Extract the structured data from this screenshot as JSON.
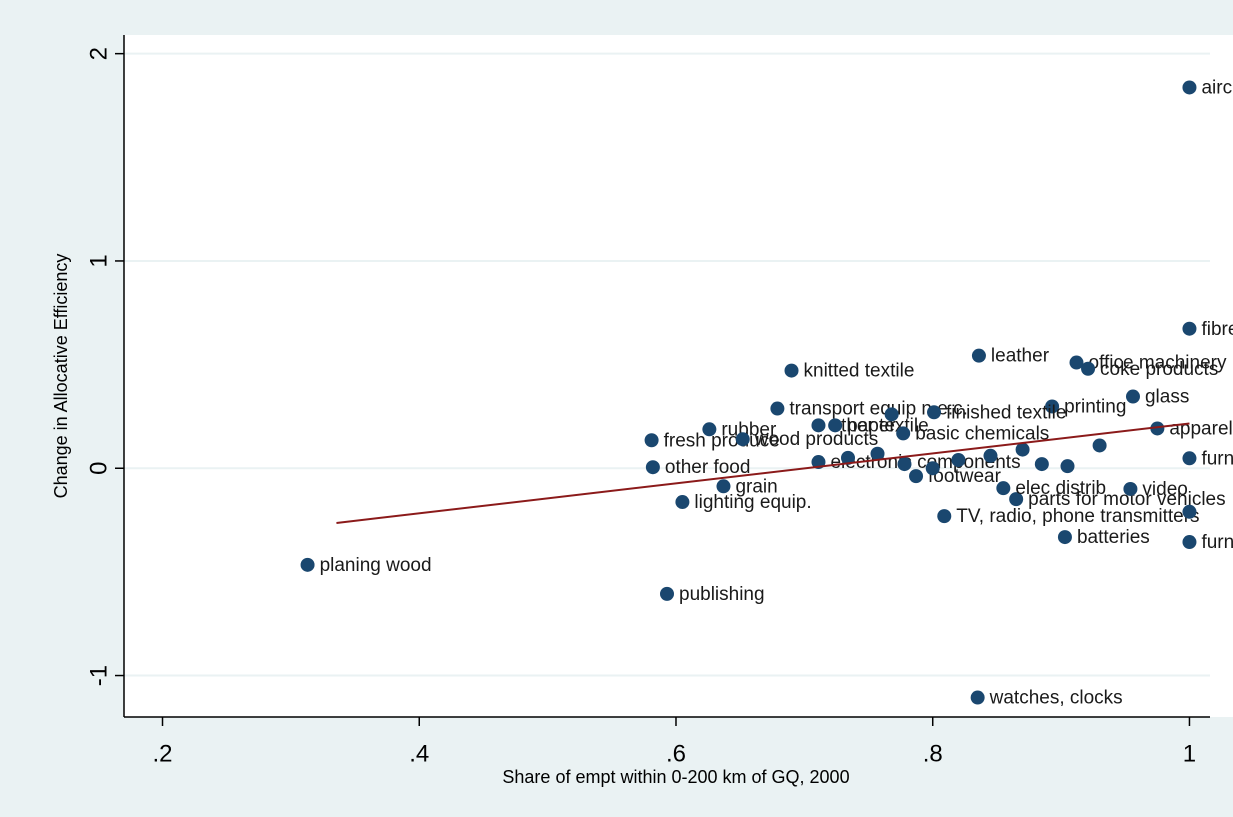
{
  "chart_data": {
    "type": "scatter",
    "x_label": "Share of empt within 0-200 km of GQ, 2000",
    "y_label": "Change in Allocative Efficiency",
    "color": "#1a476f",
    "x": [
      1,
      1,
      0.836,
      0.912,
      0.921,
      0.69,
      0.956,
      0.893,
      0.679,
      0.975,
      0.626,
      0.711,
      0.724,
      0.801,
      0.777,
      0.581,
      0.652,
      1,
      0.582,
      0.637,
      0.605,
      0.809,
      0.903,
      1,
      0.865,
      0.855,
      0.954,
      0.787,
      0.711,
      0.313,
      0.593,
      0.835,
      0.734,
      0.757,
      0.778,
      0.82,
      0.845,
      0.87,
      0.885,
      0.905,
      0.93,
      1,
      0.768,
      0.8
    ],
    "values": [
      1.837,
      0.673,
      0.543,
      0.51,
      0.48,
      0.471,
      0.346,
      0.298,
      0.288,
      0.192,
      0.188,
      0.207,
      0.207,
      0.27,
      0.168,
      0.135,
      0.14,
      0.048,
      0.005,
      -0.087,
      -0.163,
      -0.231,
      -0.332,
      -0.356,
      -0.149,
      -0.096,
      -0.1,
      -0.038,
      0.03,
      -0.466,
      -0.606,
      -1.106,
      0.05,
      0.07,
      0.02,
      0.04,
      0.06,
      0.09,
      0.02,
      0.01,
      0.11,
      -0.21,
      0.26,
      0.0
    ],
    "labels": [
      "aircraft",
      "fibres",
      "leather",
      "office machinery",
      "coke products",
      "knitted textile",
      "glass",
      "printing",
      "transport equip n.e.c.",
      "apparel",
      "rubber",
      "other textile",
      "paper",
      "finished textile",
      "basic chemicals",
      "fresh produce",
      "wood products",
      "furniture n.e.c.",
      "other food",
      "grain",
      "lighting equip.",
      "TV, radio, phone transmitters",
      "batteries",
      "furniture",
      "parts for motor vehicles",
      "elec distrib",
      "video",
      "footwear",
      "electronic components",
      "planing wood",
      "publishing",
      "watches, clocks",
      null,
      null,
      null,
      null,
      null,
      null,
      null,
      null,
      null,
      null,
      null,
      null
    ],
    "fit": {
      "x": [
        0.3355,
        1
      ],
      "y": [
        -0.264,
        0.216
      ],
      "color": "#8b1a1a"
    },
    "xlim": [
      0.17,
      1.016
    ],
    "ylim": [
      -1.2,
      2.09
    ],
    "xticks": [
      {
        "value": 0.2,
        "label": ".2"
      },
      {
        "value": 0.4,
        "label": ".4"
      },
      {
        "value": 0.6,
        "label": ".6"
      },
      {
        "value": 0.8,
        "label": ".8"
      },
      1
    ],
    "yticks": [
      -1,
      0,
      1,
      2
    ],
    "grid": true
  }
}
